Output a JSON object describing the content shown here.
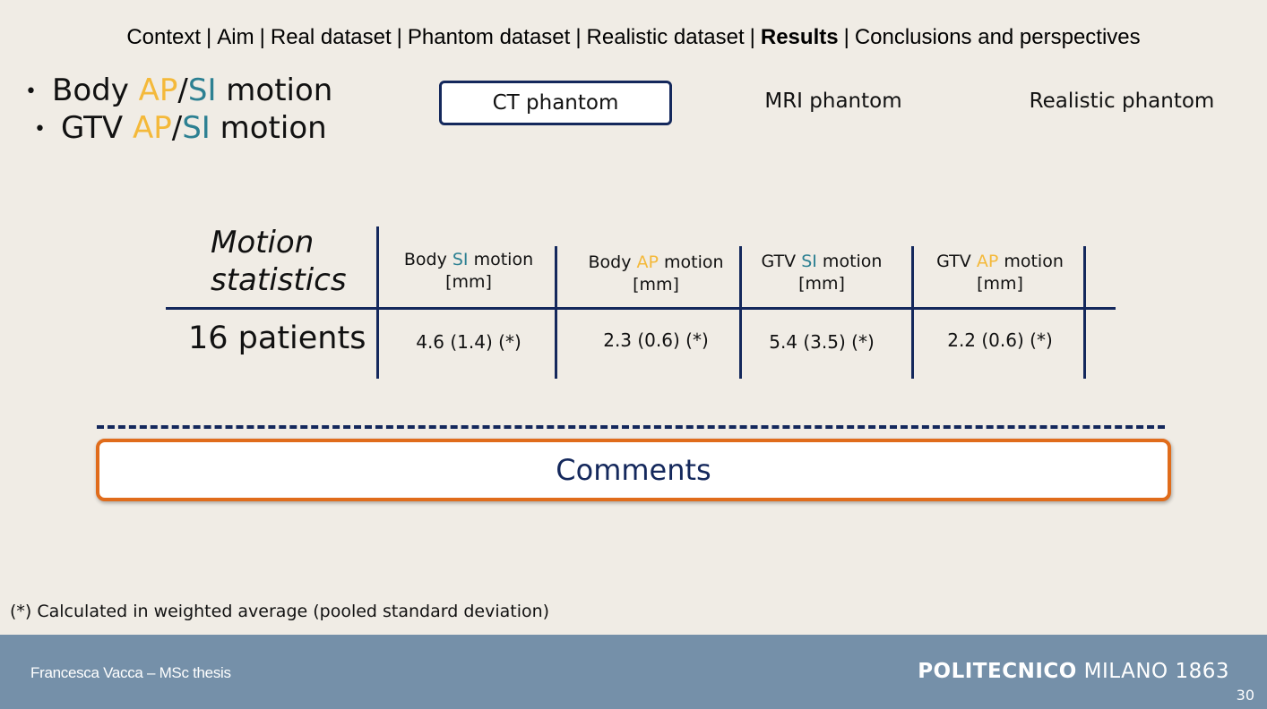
{
  "nav": {
    "items": [
      "Context",
      "Aim",
      "Real dataset",
      "Phantom dataset",
      "Realistic dataset",
      "Results",
      "Conclusions and perspectives"
    ],
    "active": "Results",
    "separator": "|"
  },
  "bullets": {
    "b1": {
      "prefix": "Body ",
      "ap": "AP",
      "slash": "/",
      "si": "SI",
      "suffix": " motion"
    },
    "b2": {
      "prefix": "GTV ",
      "ap": "AP",
      "slash": "/",
      "si": "SI",
      "suffix": " motion"
    }
  },
  "tabs": [
    "CT phantom",
    "MRI phantom",
    "Realistic phantom"
  ],
  "table": {
    "title_line1": "Motion",
    "title_line2": "statistics",
    "columns": [
      {
        "prefix": "Body ",
        "key": "SI",
        "suffix": " motion",
        "unit": "[mm]",
        "kind": "si"
      },
      {
        "prefix": "Body ",
        "key": "AP",
        "suffix": " motion",
        "unit": "[mm]",
        "kind": "ap"
      },
      {
        "prefix": "GTV ",
        "key": "SI",
        "suffix": " motion",
        "unit": "[mm]",
        "kind": "si"
      },
      {
        "prefix": "GTV ",
        "key": "AP",
        "suffix": " motion",
        "unit": "[mm]",
        "kind": "ap"
      }
    ],
    "row_label": "16 patients",
    "values": [
      "4.6 (1.4) (*)",
      "2.3 (0.6) (*)",
      "5.4 (3.5) (*)",
      "2.2 (0.6) (*)"
    ]
  },
  "comments_label": "Comments",
  "footnote": "(*) Calculated in weighted average (pooled standard deviation)",
  "footer": {
    "author": "Francesca Vacca – MSc thesis",
    "brand_bold": "POLITECNICO",
    "brand_rest": " MILANO 1863",
    "page": "30"
  },
  "colors": {
    "ap": "#f4b93a",
    "si": "#2c8092",
    "navy": "#14285c",
    "orange": "#e06c1b",
    "footer": "#7590a9"
  }
}
